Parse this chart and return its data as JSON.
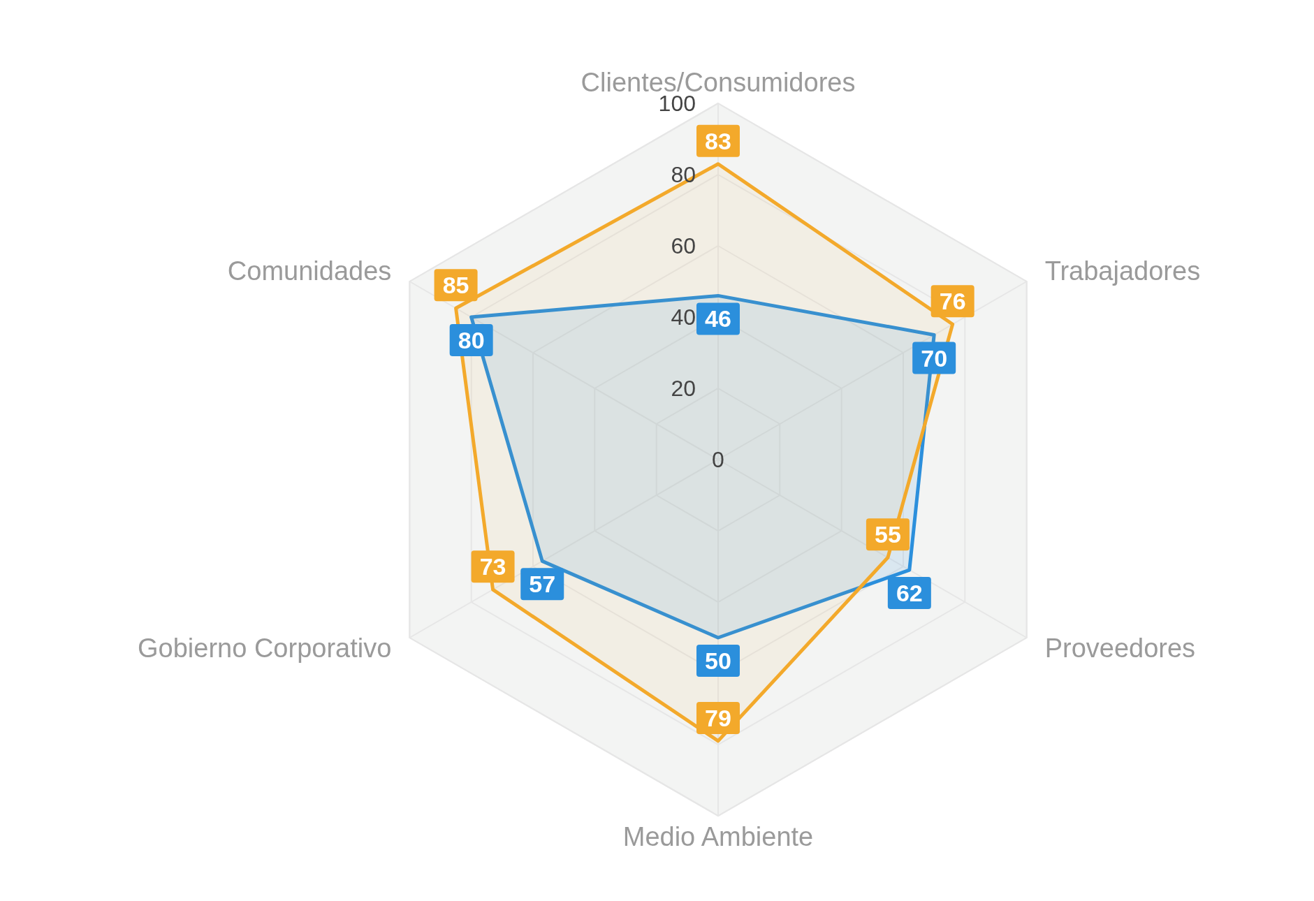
{
  "chart_data": {
    "type": "radar",
    "categories": [
      "Clientes/Consumidores",
      "Trabajadores",
      "Proveedores",
      "Medio Ambiente",
      "Gobierno Corporativo",
      "Comunidades"
    ],
    "series": [
      {
        "color": "#2b8fdc",
        "values": [
          46,
          70,
          62,
          50,
          57,
          80
        ]
      },
      {
        "color": "#f3a92b",
        "values": [
          83,
          76,
          55,
          79,
          73,
          85
        ]
      }
    ],
    "ylim": [
      0,
      100
    ],
    "yticks": [
      0,
      20,
      40,
      60,
      80,
      100
    ],
    "data_labels": true,
    "grid": true
  }
}
